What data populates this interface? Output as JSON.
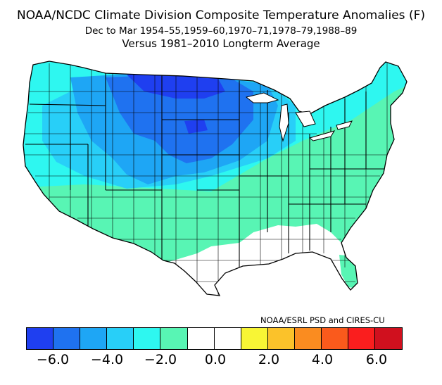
{
  "header": {
    "title": "NOAA/NCDC Climate Division Composite Temperature Anomalies (F)",
    "subtitle": "Dec to Mar  1954–55,1959–60,1970–71,1978–79,1988–89",
    "baseline": "Versus 1981–2010 Longterm Average"
  },
  "credit": "NOAA/ESRL PSD and CIRES-CU",
  "colorbar": {
    "colors": [
      "#1f3ff0",
      "#1f72f0",
      "#1ea6f5",
      "#28cff8",
      "#2ef7f0",
      "#58f5b4",
      "#ffffff",
      "#ffffff",
      "#f8f535",
      "#fbc22a",
      "#fa8c20",
      "#fa5a1c",
      "#fa1e1e",
      "#d0101e"
    ],
    "tick_labels": [
      "−6.0",
      "−4.0",
      "−2.0",
      "0.0",
      "2.0",
      "4.0",
      "6.0"
    ]
  },
  "legend_colors": {
    "anomaly_minus_6": "#1f3ff0",
    "anomaly_minus_5": "#1f72f0",
    "anomaly_minus_4": "#1ea6f5",
    "anomaly_minus_3": "#28cff8",
    "anomaly_minus_2": "#2ef7f0",
    "anomaly_minus_1": "#58f5b4",
    "anomaly_near_zero": "#ffffff"
  }
}
